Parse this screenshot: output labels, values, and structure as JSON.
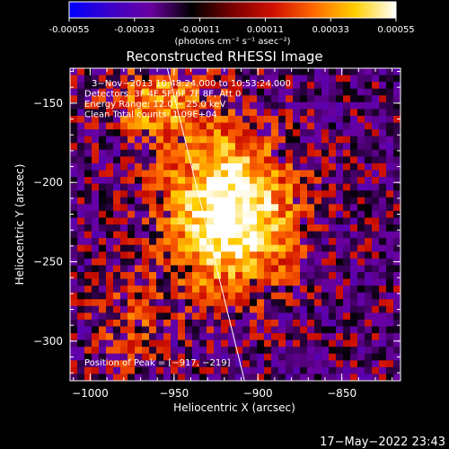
{
  "colorbar": {
    "ticks": [
      "-0.00055",
      "-0.00033",
      "-0.00011",
      "0.00011",
      "0.00033",
      "0.00055"
    ],
    "unit_label": "(photons cm⁻² s⁻¹ asec⁻²)",
    "colors": [
      "#0000ff",
      "#3a00c8",
      "#6a00a0",
      "#000000",
      "#7a0000",
      "#d01000",
      "#ff6a00",
      "#ffd000",
      "#ffffff"
    ]
  },
  "chart_data": {
    "type": "heatmap",
    "title": "Reconstructed RHESSI Image",
    "xlabel": "Heliocentric X (arcsec)",
    "ylabel": "Heliocentric Y (arcsec)",
    "xlim": [
      -1012,
      -815
    ],
    "ylim": [
      -325,
      -128
    ],
    "xticks": [
      {
        "value": -1000,
        "label": "−1000"
      },
      {
        "value": -950,
        "label": "−950"
      },
      {
        "value": -900,
        "label": "−900"
      },
      {
        "value": -850,
        "label": "−850"
      }
    ],
    "yticks": [
      {
        "value": -150,
        "label": "−150"
      },
      {
        "value": -200,
        "label": "−200"
      },
      {
        "value": -250,
        "label": "−250"
      },
      {
        "value": -300,
        "label": "−300"
      }
    ],
    "annotations": [
      "3−Nov−2013 10:48:24.000 to 10:53:24.000",
      "Detectors: 3F 4F 5F 6F 7F 8F, Att 0",
      "Energy Range: 12.0 − 25.0 keV",
      "Clean    Total counts: 1.09E+04"
    ],
    "peak_label": "Position of Peak = [−917, −219]",
    "peak": [
      -917,
      -219
    ],
    "limb_line": [
      [
        -954,
        -128
      ],
      [
        -908,
        -325
      ]
    ]
  },
  "footer": {
    "timestamp": "17−May−2022 23:43"
  }
}
